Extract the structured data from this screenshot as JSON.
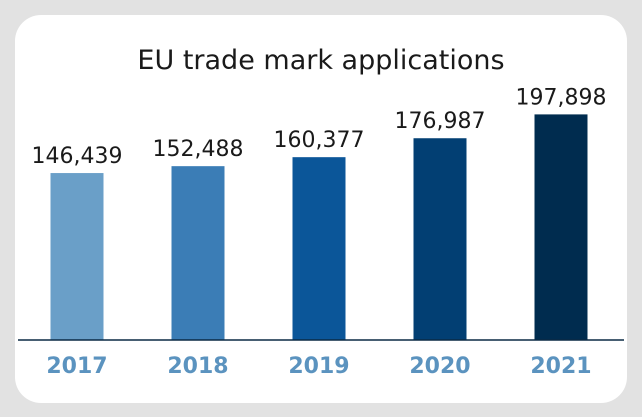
{
  "chart_data": {
    "type": "bar",
    "title": "EU trade mark applications",
    "categories": [
      "2017",
      "2018",
      "2019",
      "2020",
      "2021"
    ],
    "values": [
      146439,
      152488,
      160377,
      176987,
      197898
    ],
    "value_labels": [
      "146,439",
      "152,488",
      "160,377",
      "176,987",
      "197,898"
    ],
    "xlabel": "",
    "ylabel": "",
    "ylim": [
      0,
      200000
    ],
    "grid": false,
    "legend": "none",
    "bar_colors": [
      "#6a9fc8",
      "#3b7db6",
      "#0b5699",
      "#023f73",
      "#002c4f"
    ],
    "tick_color": "#5b93bf",
    "axis_color": "#0b2a45",
    "background": "#e2e2e2",
    "card_color": "#ffffff"
  }
}
